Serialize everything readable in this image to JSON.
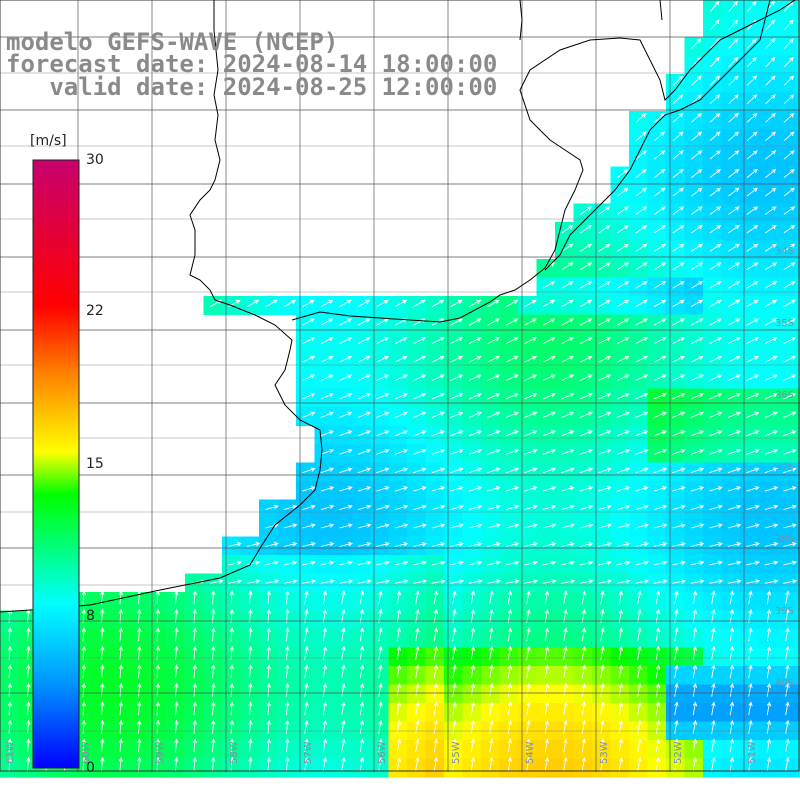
{
  "title": {
    "line1": "modelo GEFS-WAVE (NCEP)",
    "line2": "forecast date: 2024-08-14 18:00:00",
    "line3": "   valid date: 2024-08-25 12:00:00"
  },
  "colorbar": {
    "unit": "[m/s]",
    "min": 0,
    "max": 30,
    "ticks": [
      "30",
      "22",
      "15",
      "8",
      "0"
    ],
    "tick_values": [
      30,
      22,
      15,
      8,
      0
    ],
    "colors": [
      "#0000ff",
      "#0096ff",
      "#00ffff",
      "#00ff00",
      "#ffff00",
      "#ff8000",
      "#ff0000",
      "#c8006e"
    ]
  },
  "lat_labels": [
    "34S",
    "35S",
    "36S",
    "37S",
    "38S",
    "39S",
    "40S"
  ],
  "lat_values": [
    34,
    35,
    36,
    37,
    38,
    39,
    40
  ],
  "lon_labels": [
    "61W",
    "60W",
    "59W",
    "58W",
    "57W",
    "56W",
    "55W",
    "54W",
    "53W",
    "52W",
    "51W"
  ],
  "lon_values": [
    61,
    60,
    59,
    58,
    57,
    56,
    55,
    54,
    53,
    52,
    51
  ],
  "colors": {
    "land": "#ffffff",
    "coast": "#000000",
    "grid": "#333333",
    "title": "#8a8a8a"
  }
}
